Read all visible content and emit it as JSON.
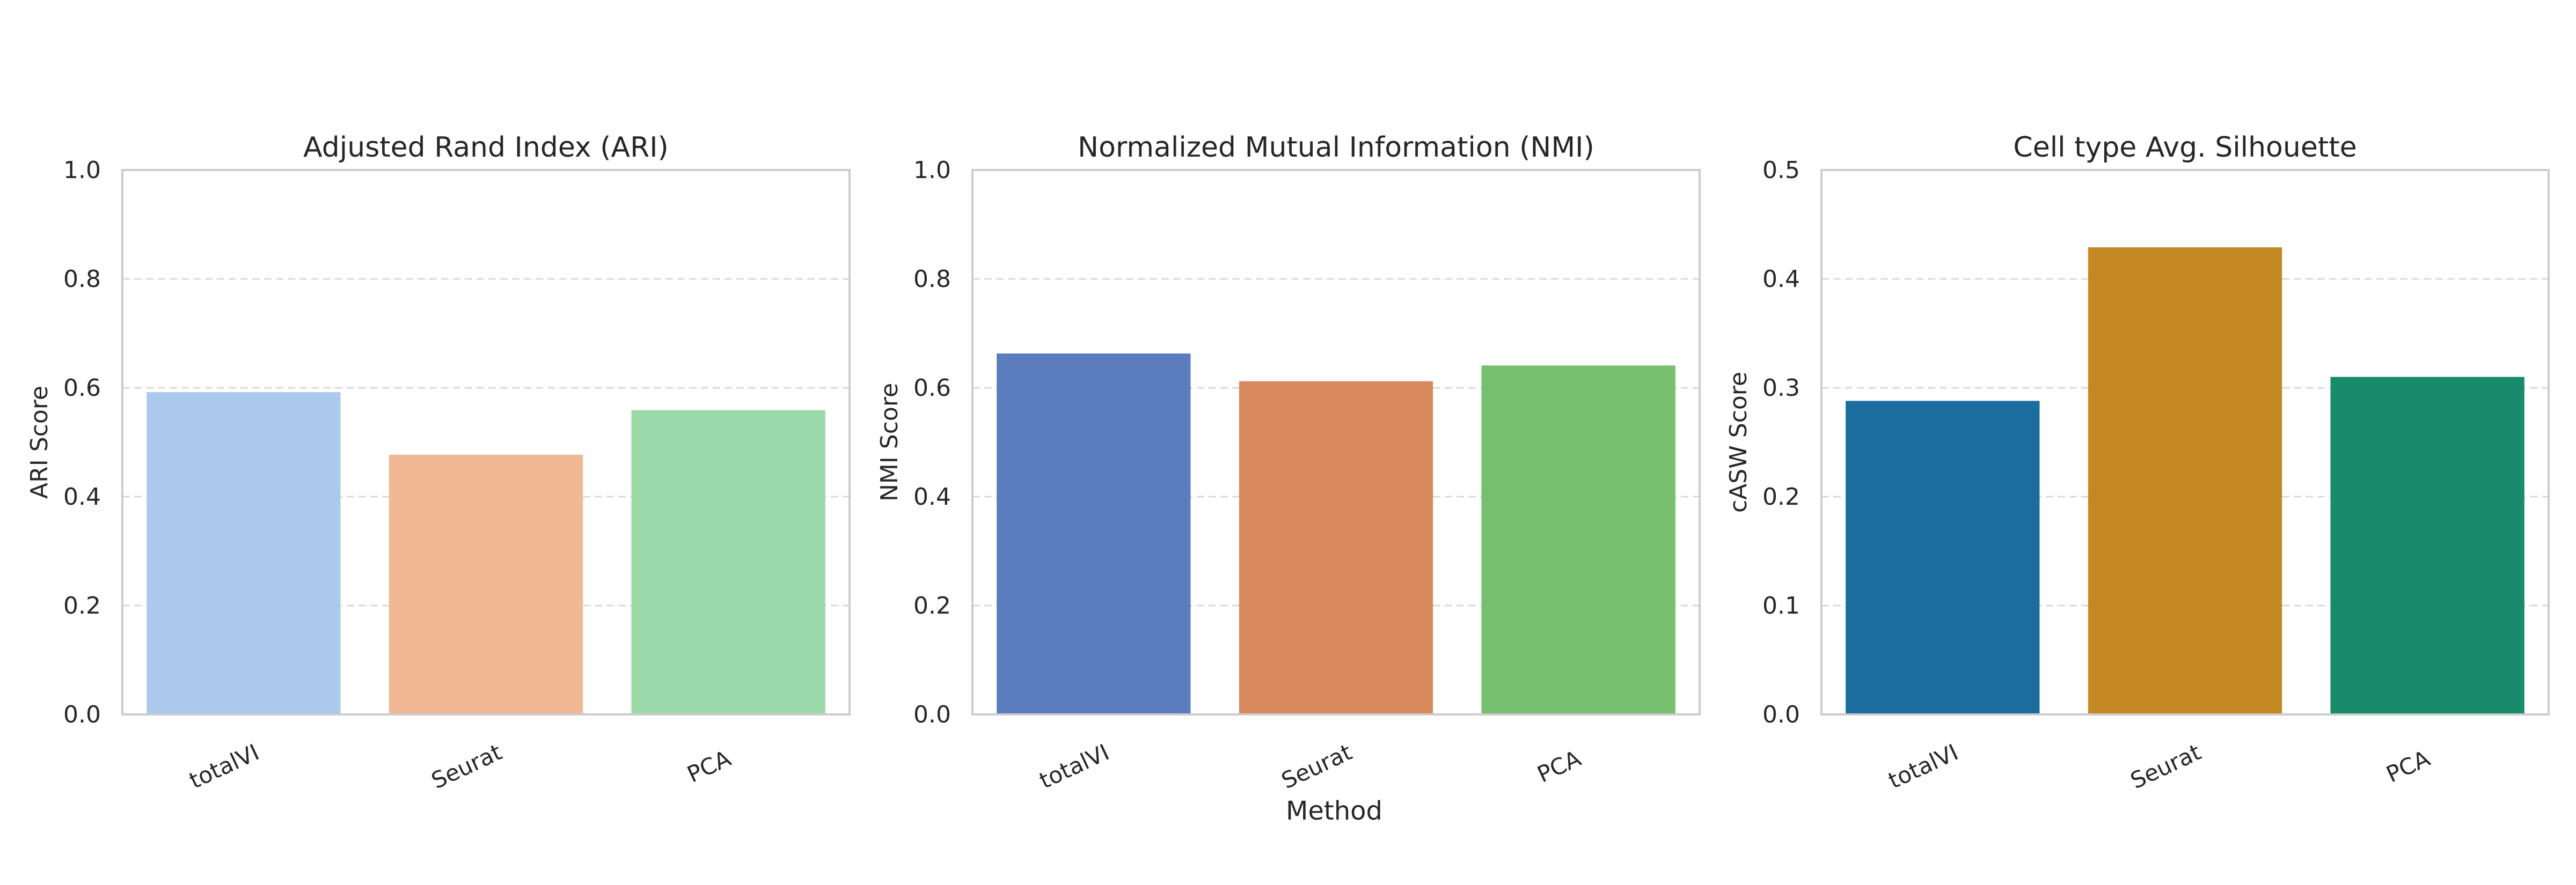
{
  "figure": {
    "xlabel": "Method"
  },
  "chart_data": [
    {
      "type": "bar",
      "title": "Adjusted Rand Index (ARI)",
      "xlabel": "",
      "ylabel": "ARI Score",
      "categories": [
        "totalVI",
        "Seurat",
        "PCA"
      ],
      "values": [
        0.592,
        0.477,
        0.559
      ],
      "colors": [
        "#abc9ed",
        "#f0b893",
        "#9adaa8"
      ],
      "ylim": [
        0,
        1.0
      ],
      "yticks": [
        "0.0",
        "0.2",
        "0.4",
        "0.6",
        "0.8",
        "1.0"
      ],
      "grid": "y-dashed"
    },
    {
      "type": "bar",
      "title": "Normalized Mutual Information (NMI)",
      "xlabel": "Method",
      "ylabel": "NMI Score",
      "categories": [
        "totalVI",
        "Seurat",
        "PCA"
      ],
      "values": [
        0.663,
        0.612,
        0.641
      ],
      "colors": [
        "#5b7dbe",
        "#d88a5e",
        "#76bf6f"
      ],
      "ylim": [
        0,
        1.0
      ],
      "yticks": [
        "0.0",
        "0.2",
        "0.4",
        "0.6",
        "0.8",
        "1.0"
      ],
      "grid": "y-dashed"
    },
    {
      "type": "bar",
      "title": "Cell type Avg. Silhouette",
      "xlabel": "",
      "ylabel": "cASW Score",
      "categories": [
        "totalVI",
        "Seurat",
        "PCA"
      ],
      "values": [
        0.288,
        0.429,
        0.31
      ],
      "colors": [
        "#1a6d9e",
        "#c38821",
        "#188b6b"
      ],
      "ylim": [
        0,
        0.5
      ],
      "yticks": [
        "0.0",
        "0.1",
        "0.2",
        "0.3",
        "0.4",
        "0.5"
      ],
      "grid": "y-dashed"
    }
  ]
}
